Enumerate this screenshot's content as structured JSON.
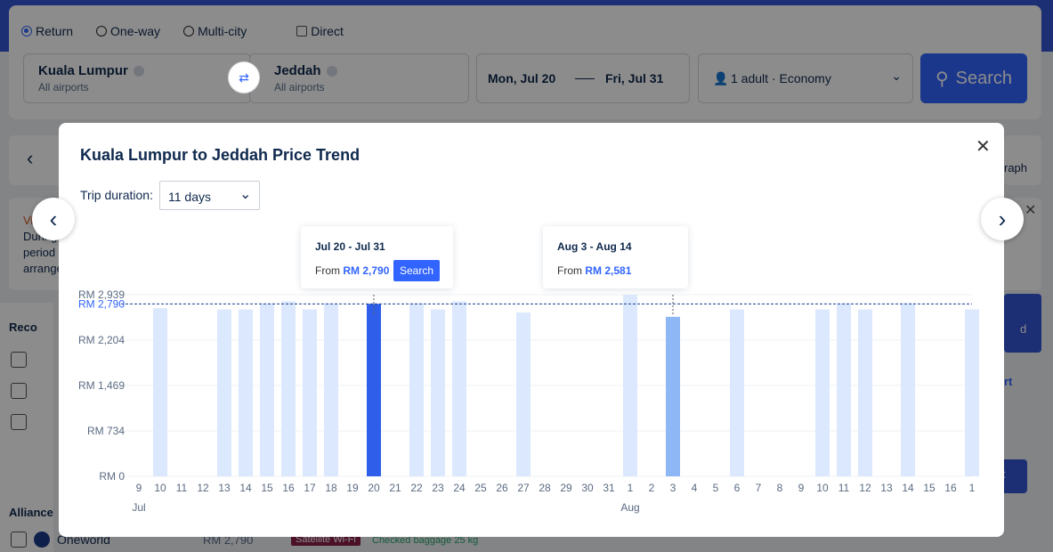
{
  "search": {
    "trip_types": [
      "Return",
      "One-way",
      "Multi-city"
    ],
    "direct_label": "Direct",
    "from_city": "Kuala Lumpur",
    "from_sub": "All airports",
    "to_city": "Jeddah",
    "to_sub": "All airports",
    "depart": "Mon, Jul 20",
    "return": "Fri, Jul 31",
    "passengers": "1 adult · Economy",
    "search_label": "Search"
  },
  "background": {
    "graph_label": "raph",
    "visa_heading": "Visa no",
    "visa_lines": [
      "During",
      "period",
      "arrange"
    ],
    "recommended": "Reco",
    "alliance": "Alliance",
    "oneworld": "Oneworld",
    "oneworld_price": "RM 2,790",
    "satellite": "Satellite Wi-Fi",
    "baggage": "Checked baggage 25 kg",
    "right_btn_fragment": "d",
    "right_link_fragment": "rt",
    "right_btn2_fragment": "t"
  },
  "modal": {
    "title": "Kuala Lumpur to Jeddah Price Trend",
    "duration_label": "Trip duration:",
    "duration_value": "11 days",
    "tooltip_selected": {
      "dates": "Jul 20 - Jul 31",
      "from_label": "From",
      "price": "RM 2,790",
      "button": "Search"
    },
    "tooltip_hover": {
      "dates": "Aug 3 - Aug 14",
      "from_label": "From",
      "price": "RM 2,581"
    }
  },
  "colors": {
    "accent": "#3264ff",
    "bar": "#dbe8fd",
    "bar_selected": "#2f5fea",
    "bar_hover": "#8db8f5",
    "navy": "#0f294d"
  },
  "chart_data": {
    "type": "bar",
    "x": [
      "9",
      "10",
      "11",
      "12",
      "13",
      "14",
      "15",
      "16",
      "17",
      "18",
      "19",
      "20",
      "21",
      "22",
      "23",
      "24",
      "25",
      "26",
      "27",
      "28",
      "29",
      "30",
      "31",
      "1",
      "2",
      "3",
      "4",
      "5",
      "6",
      "7",
      "8",
      "9",
      "10",
      "11",
      "12",
      "13",
      "14",
      "15",
      "16",
      "1"
    ],
    "month_labels": [
      {
        "label": "Jul",
        "index": 0
      },
      {
        "label": "Aug",
        "index": 23
      }
    ],
    "values": [
      null,
      2720,
      null,
      null,
      2700,
      2700,
      2800,
      2830,
      2700,
      2800,
      null,
      2790,
      null,
      2800,
      2700,
      2830,
      null,
      null,
      2650,
      null,
      null,
      null,
      null,
      2939,
      null,
      2581,
      null,
      null,
      2700,
      null,
      null,
      null,
      2700,
      2800,
      2700,
      null,
      2800,
      null,
      null,
      2700
    ],
    "selected_index": 11,
    "hover_index": 25,
    "reference_line": {
      "value": 2790,
      "label": "RM 2,790"
    },
    "yticks": [
      {
        "value": 0,
        "label": "RM 0"
      },
      {
        "value": 734,
        "label": "RM 734"
      },
      {
        "value": 1469,
        "label": "RM 1,469"
      },
      {
        "value": 2204,
        "label": "RM 2,204"
      },
      {
        "value": 2939,
        "label": "RM 2,939"
      }
    ],
    "ylim": [
      0,
      2939
    ],
    "title": "",
    "xlabel": "",
    "ylabel": ""
  }
}
